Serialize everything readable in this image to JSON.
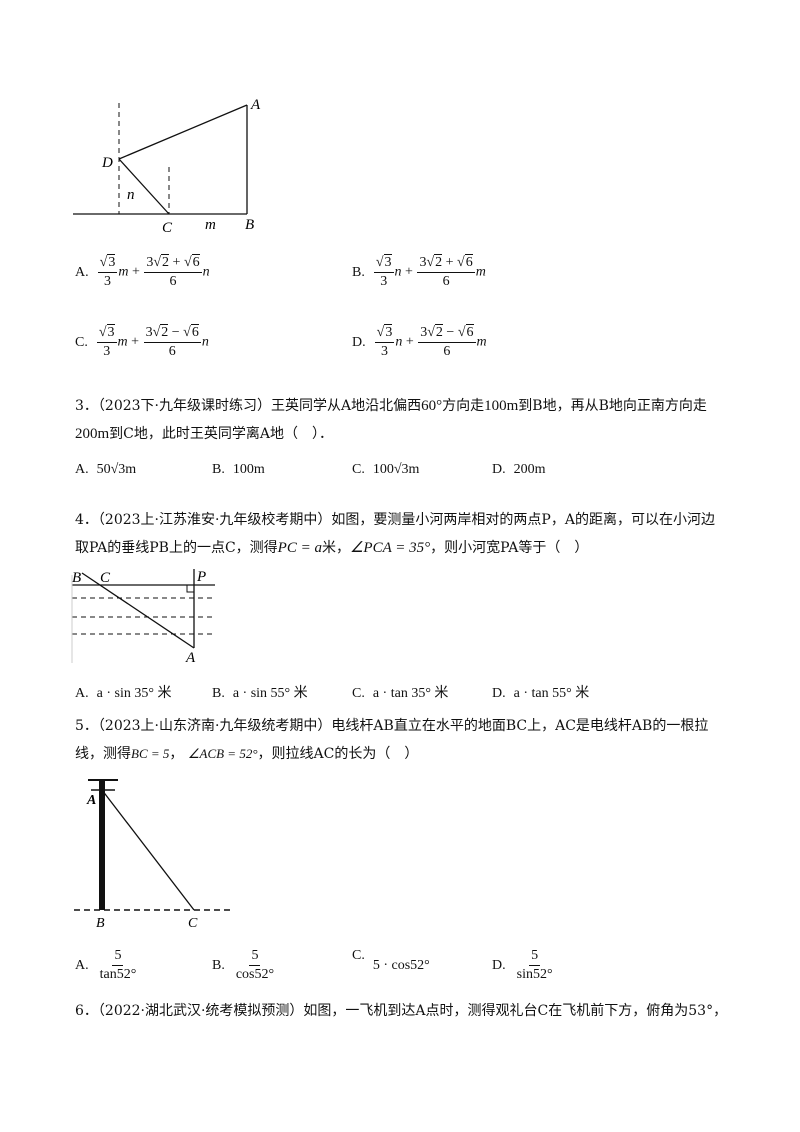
{
  "fig1": {
    "labels": {
      "A": "A",
      "B": "B",
      "C": "C",
      "D": "D",
      "m": "m",
      "n": "n"
    }
  },
  "q2_options": [
    {
      "label": "A.",
      "c1": "m",
      "c2": "n",
      "sign": "+"
    },
    {
      "label": "B.",
      "c1": "n",
      "c2": "m",
      "sign": "+"
    },
    {
      "label": "C.",
      "c1": "m",
      "c2": "n",
      "sign": "−"
    },
    {
      "label": "D.",
      "c1": "n",
      "c2": "m",
      "sign": "−"
    }
  ],
  "q2_common": {
    "rad3": "3",
    "den3": "3",
    "six": "6",
    "rad2": "2",
    "rad6": "6",
    "coef": "3"
  },
  "q3": {
    "line1": "3．（2023下·九年级课时练习）王英同学从A地沿北偏西",
    "angle": "60°",
    "line1b": "方向走",
    "dist1": "100m",
    "line1c": "到B地，再从B地向正南方向走",
    "dist2": "200m",
    "line2": "到C地，此时王英同学离A地（　）．",
    "options": [
      {
        "label": "A.",
        "text": "50√3m"
      },
      {
        "label": "B.",
        "text": "100m"
      },
      {
        "label": "C.",
        "text": "100√3m"
      },
      {
        "label": "D.",
        "text": "200m"
      }
    ]
  },
  "q4": {
    "line1": "4．（2023上·江苏淮安·九年级校考期中）如图，要测量小河两岸相对的两点P，A的距离，可以在小河边",
    "line2a": "取PA的垂线PB上的一点C，测得",
    "pc": "PC = a",
    "line2b": "米，",
    "angle": "∠PCA = 35°",
    "line2c": "，则小河宽PA等于（　）",
    "fig_labels": {
      "B": "B",
      "C": "C",
      "P": "P",
      "A": "A"
    },
    "options": [
      {
        "label": "A.",
        "text": "a · sin 35° 米"
      },
      {
        "label": "B.",
        "text": "a · sin 55° 米"
      },
      {
        "label": "C.",
        "text": "a · tan 35° 米"
      },
      {
        "label": "D.",
        "text": "a · tan 55° 米"
      }
    ]
  },
  "q5": {
    "line1": "5．（2023上·山东济南·九年级统考期中）电线杆AB直立在水平的地面BC上，AC是电线杆AB的一根拉",
    "line2a": "线，测得",
    "bc": "BC = 5",
    "angle": "∠ACB = 52°",
    "line2b": "，则拉线AC的长为（　）",
    "fig_labels": {
      "A": "A",
      "B": "B",
      "C": "C"
    },
    "options": [
      {
        "label": "A.",
        "num": "5",
        "den": "tan52°"
      },
      {
        "label": "B.",
        "num": "5",
        "den": "cos52°"
      },
      {
        "label": "C.",
        "text": "5 · cos52°"
      },
      {
        "label": "D.",
        "num": "5",
        "den": "sin52°"
      }
    ]
  },
  "q6": {
    "line1": "6．（2022·湖北武汉·统考模拟预测）如图，一飞机到达A点时，测得观礼台C在飞机前下方，俯角为53°，"
  }
}
